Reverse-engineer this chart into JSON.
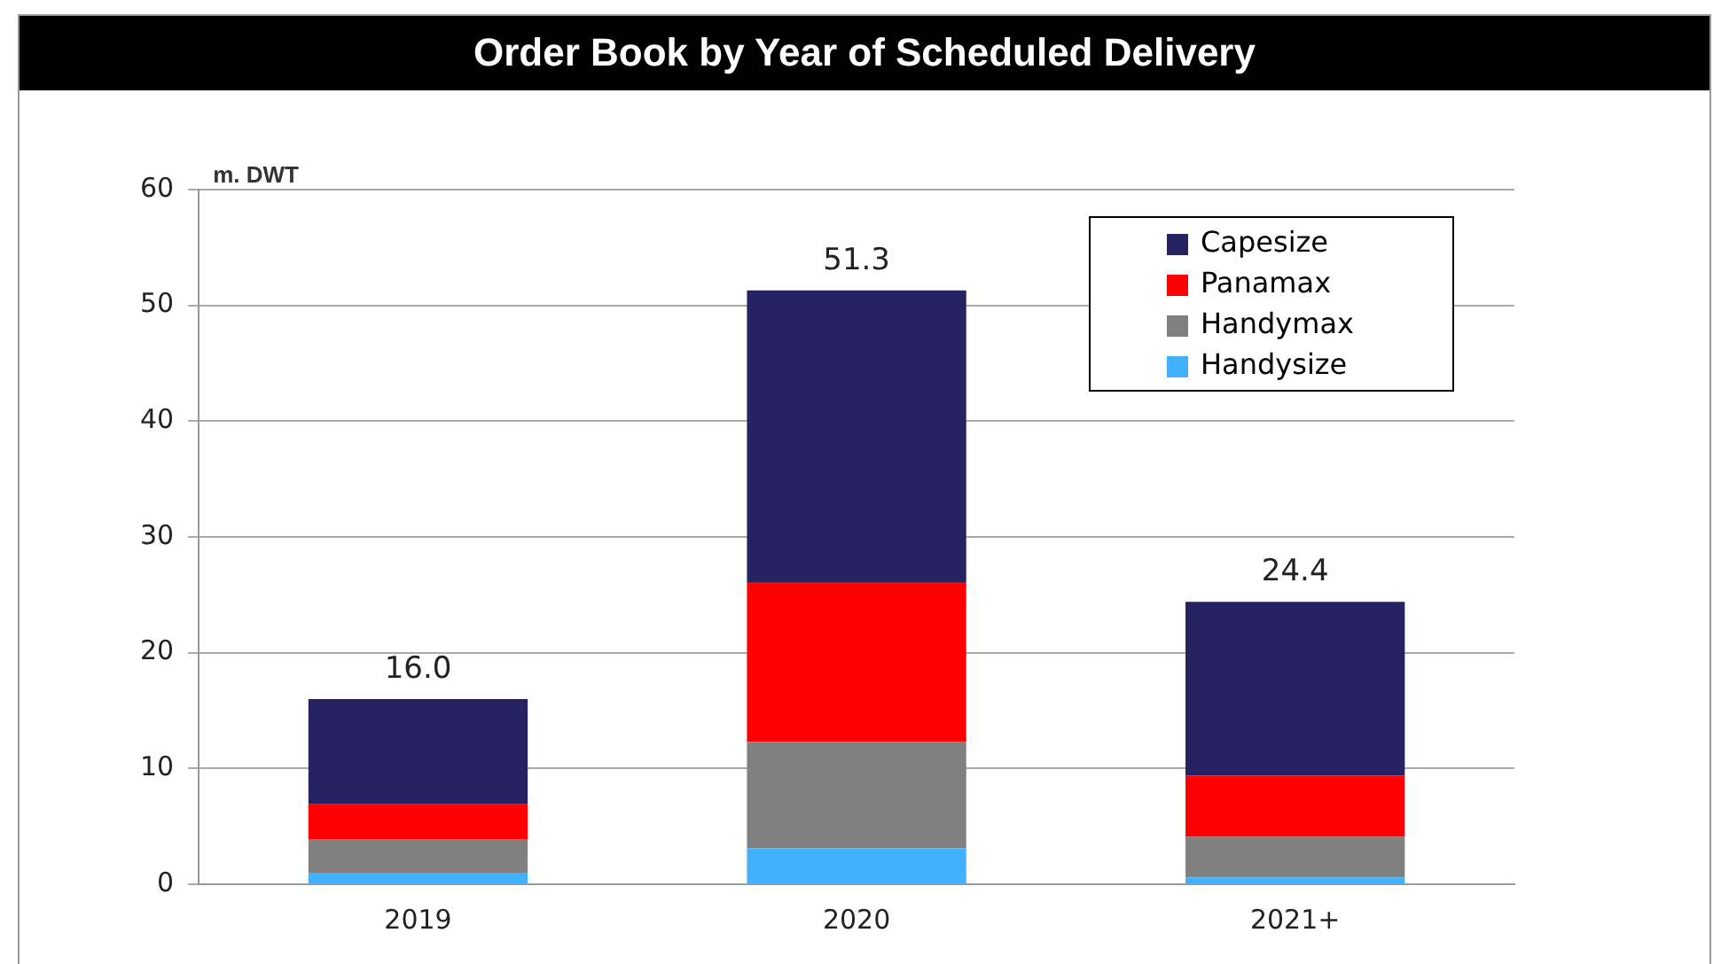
{
  "chart_data": {
    "type": "bar",
    "title": "Order Book by Year of Scheduled Delivery",
    "ylabel": "m. DWT",
    "categories": [
      "2019",
      "2020",
      "2021+"
    ],
    "stacked": true,
    "series": [
      {
        "name": "Handysize",
        "color": "#41b0ff",
        "values": [
          1.0,
          3.1,
          0.6
        ]
      },
      {
        "name": "Handymax",
        "color": "#808080",
        "values": [
          2.9,
          9.2,
          3.5
        ]
      },
      {
        "name": "Panamax",
        "color": "#ff0000",
        "values": [
          3.0,
          13.8,
          5.3
        ]
      },
      {
        "name": "Capesize",
        "color": "#262262",
        "values": [
          9.1,
          25.2,
          15.0
        ]
      }
    ],
    "totals": [
      "16.0",
      "51.3",
      "24.4"
    ],
    "ylim": [
      0,
      60
    ],
    "yticks": [
      0,
      10,
      20,
      30,
      40,
      50,
      60
    ],
    "grid": "y",
    "legend": "top right"
  }
}
